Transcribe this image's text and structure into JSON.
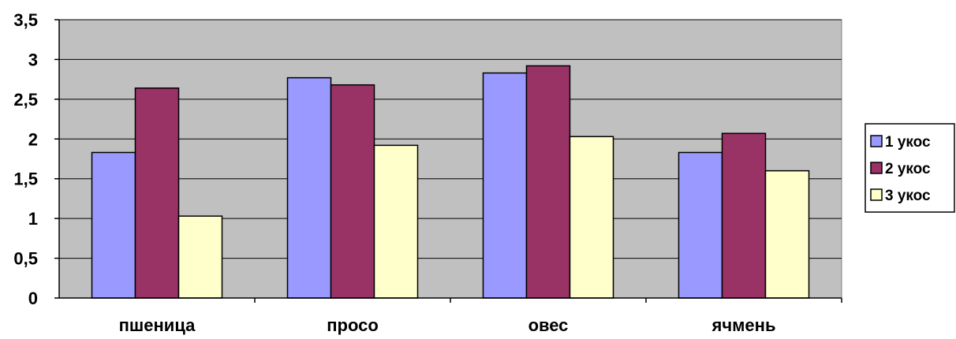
{
  "chart_data": {
    "type": "bar",
    "title": "",
    "xlabel": "",
    "ylabel": "",
    "categories": [
      "пшеница",
      "просо",
      "овес",
      "ячмень"
    ],
    "series": [
      {
        "name": "1 укос",
        "color": "#9999ff",
        "values": [
          1.83,
          2.77,
          2.83,
          1.83
        ]
      },
      {
        "name": "2 укос",
        "color": "#993366",
        "values": [
          2.64,
          2.68,
          2.92,
          2.07
        ]
      },
      {
        "name": "3 укос",
        "color": "#ffffcc",
        "values": [
          1.03,
          1.92,
          2.03,
          1.6
        ]
      }
    ],
    "ylim": [
      0,
      3.5
    ],
    "yticks": [
      "0",
      "0,5",
      "1",
      "1,5",
      "2",
      "2,5",
      "3",
      "3,5"
    ],
    "grid": true,
    "plot_background": "#c0c0c0",
    "legend_position": "right"
  }
}
